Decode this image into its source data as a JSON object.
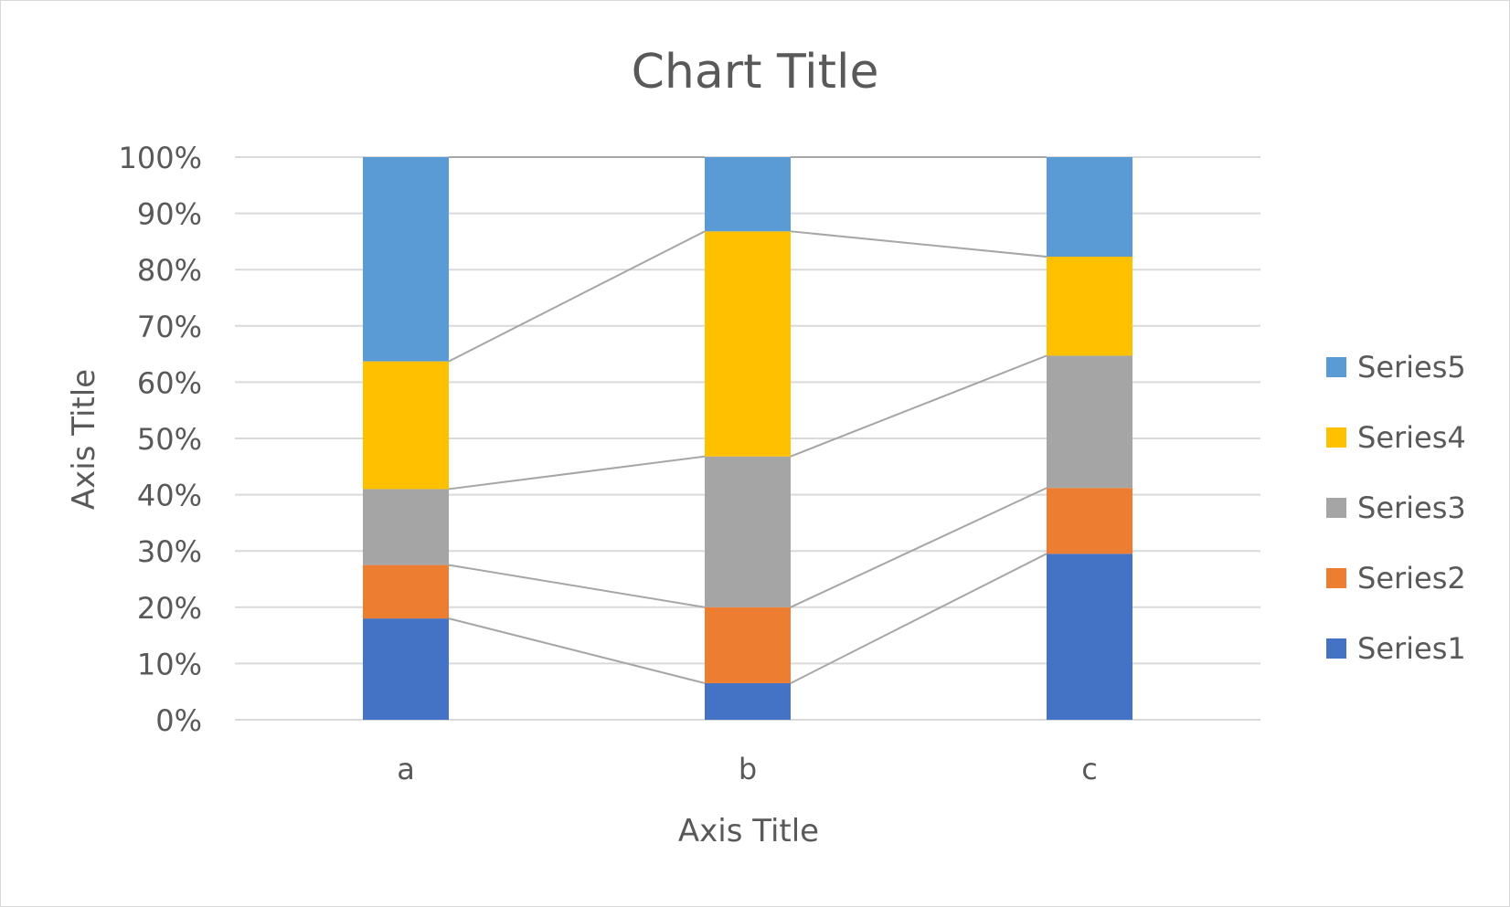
{
  "chart_data": {
    "type": "bar",
    "stacked": "percent",
    "title": "Chart Title",
    "xlabel": "Axis Title",
    "ylabel": "Axis Title",
    "categories": [
      "a",
      "b",
      "c"
    ],
    "ylim": [
      0,
      100
    ],
    "y_ticks": [
      "0%",
      "10%",
      "20%",
      "30%",
      "40%",
      "50%",
      "60%",
      "70%",
      "80%",
      "90%",
      "100%"
    ],
    "grid": true,
    "series_lines": true,
    "legend": "right",
    "series": [
      {
        "name": "Series1",
        "color": "#4472C4",
        "values": [
          18,
          6.5,
          29.5
        ]
      },
      {
        "name": "Series2",
        "color": "#ED7D31",
        "values": [
          9.5,
          13.5,
          11.7
        ]
      },
      {
        "name": "Series3",
        "color": "#A5A5A5",
        "values": [
          13.5,
          26.8,
          23.5
        ]
      },
      {
        "name": "Series4",
        "color": "#FFC000",
        "values": [
          22.7,
          40,
          17.6
        ]
      },
      {
        "name": "Series5",
        "color": "#5B9BD5",
        "values": [
          36.3,
          13.2,
          17.7
        ]
      }
    ]
  }
}
